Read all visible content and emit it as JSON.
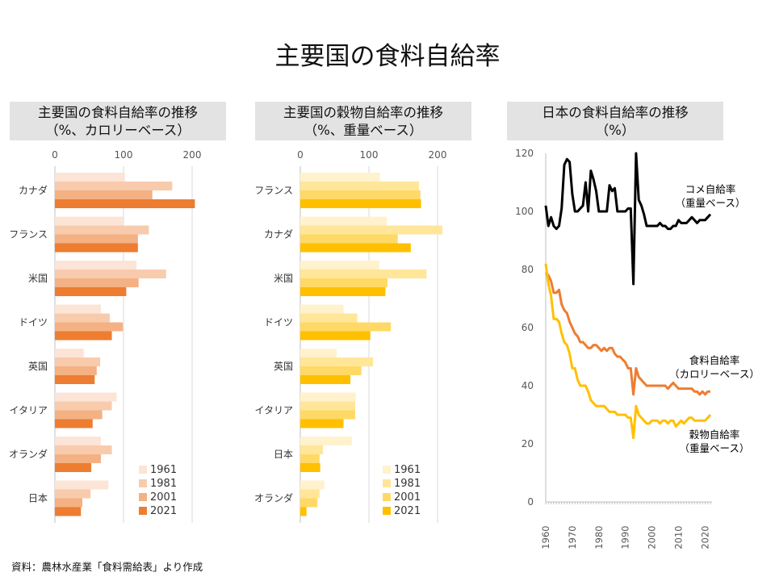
{
  "title": "主要国の食料自給率",
  "source": "資料：農林水産業「食料需給表」より作成",
  "colors": {
    "orange": [
      "#fce4d6",
      "#f8cbad",
      "#f4b183",
      "#ed7d31"
    ],
    "yellow": [
      "#fff2cc",
      "#ffe699",
      "#ffd966",
      "#ffc000"
    ],
    "rice": "#000000",
    "calorie": "#ed7d31",
    "grain": "#ffc000",
    "grid": "#d9d9d9"
  },
  "chart_data": [
    {
      "type": "bar",
      "orientation": "horizontal",
      "title_line1": "主要国の食料自給率の推移",
      "title_line2": "（%、カロリーベース）",
      "xlim": [
        0,
        200
      ],
      "xticks": [
        0,
        100,
        200
      ],
      "grid": true,
      "legend_position": "bottom-right",
      "categories": [
        "カナダ",
        "フランス",
        "米国",
        "ドイツ",
        "英国",
        "イタリア",
        "オランダ",
        "日本"
      ],
      "series": [
        {
          "name": "1961",
          "values": [
            102,
            99,
            119,
            67,
            42,
            90,
            67,
            78
          ]
        },
        {
          "name": "1981",
          "values": [
            171,
            137,
            162,
            80,
            66,
            83,
            83,
            52
          ]
        },
        {
          "name": "2001",
          "values": [
            142,
            121,
            122,
            99,
            61,
            69,
            67,
            40
          ]
        },
        {
          "name": "2021",
          "values": [
            204,
            121,
            104,
            83,
            58,
            55,
            53,
            38
          ]
        }
      ]
    },
    {
      "type": "bar",
      "orientation": "horizontal",
      "title_line1": "主要国の穀物自給率の推移",
      "title_line2": "（%、重量ベース）",
      "xlim": [
        0,
        200
      ],
      "xticks": [
        0,
        100,
        200
      ],
      "grid": true,
      "legend_position": "bottom-right",
      "categories": [
        "フランス",
        "カナダ",
        "米国",
        "ドイツ",
        "英国",
        "イタリア",
        "日本",
        "オランダ"
      ],
      "series": [
        {
          "name": "1961",
          "values": [
            116,
            126,
            115,
            63,
            53,
            81,
            75,
            35
          ]
        },
        {
          "name": "1981",
          "values": [
            173,
            207,
            184,
            83,
            106,
            80,
            33,
            28
          ]
        },
        {
          "name": "2001",
          "values": [
            175,
            142,
            127,
            132,
            89,
            80,
            28,
            25
          ]
        },
        {
          "name": "2021",
          "values": [
            176,
            161,
            124,
            102,
            73,
            63,
            29,
            9
          ]
        }
      ]
    },
    {
      "type": "line",
      "title_line1": "日本の食料自給率の推移",
      "title_line2": "（%）",
      "ylim": [
        0,
        120
      ],
      "yticks": [
        0,
        20,
        40,
        60,
        80,
        100,
        120
      ],
      "xlim": [
        1960,
        2022
      ],
      "xticks": [
        1960,
        1970,
        1980,
        1990,
        2000,
        2010,
        2020
      ],
      "grid": false,
      "x": [
        1960,
        1961,
        1962,
        1963,
        1964,
        1965,
        1966,
        1967,
        1968,
        1969,
        1970,
        1971,
        1972,
        1973,
        1974,
        1975,
        1976,
        1977,
        1978,
        1979,
        1980,
        1981,
        1982,
        1983,
        1984,
        1985,
        1986,
        1987,
        1988,
        1989,
        1990,
        1991,
        1992,
        1993,
        1994,
        1995,
        1996,
        1997,
        1998,
        1999,
        2000,
        2001,
        2002,
        2003,
        2004,
        2005,
        2006,
        2007,
        2008,
        2009,
        2010,
        2011,
        2012,
        2013,
        2014,
        2015,
        2016,
        2017,
        2018,
        2019,
        2020,
        2021,
        2022
      ],
      "series": [
        {
          "name": "コメ自給率",
          "name_sub": "（重量ベース）",
          "label_color": "#000000",
          "values": [
            102,
            95,
            98,
            95,
            94,
            95,
            101,
            116,
            118,
            117,
            106,
            100,
            100,
            101,
            102,
            110,
            100,
            114,
            111,
            107,
            100,
            100,
            100,
            100,
            109,
            107,
            108,
            100,
            100,
            100,
            100,
            101,
            101,
            75,
            120,
            104,
            102,
            99,
            95,
            95,
            95,
            95,
            95,
            96,
            95,
            95,
            94,
            94,
            95,
            95,
            97,
            96,
            96,
            96,
            97,
            98,
            97,
            96,
            97,
            97,
            97,
            98,
            99
          ]
        },
        {
          "name": "食料自給率",
          "name_sub": "（カロリーベース）",
          "label_color": "#000000",
          "values": [
            79,
            78,
            76,
            72,
            72,
            73,
            68,
            66,
            65,
            62,
            60,
            58,
            57,
            55,
            55,
            54,
            53,
            53,
            54,
            54,
            53,
            52,
            53,
            52,
            53,
            53,
            51,
            50,
            50,
            49,
            48,
            46,
            46,
            37,
            46,
            43,
            42,
            41,
            40,
            40,
            40,
            40,
            40,
            40,
            40,
            40,
            39,
            40,
            41,
            40,
            39,
            39,
            39,
            39,
            39,
            39,
            38,
            38,
            37,
            38,
            37,
            38,
            38
          ]
        },
        {
          "name": "穀物自給率",
          "name_sub": "（重量ベース）",
          "label_color": "#000000",
          "values": [
            82,
            75,
            71,
            63,
            63,
            62,
            58,
            55,
            54,
            51,
            46,
            46,
            42,
            40,
            40,
            40,
            38,
            35,
            34,
            33,
            33,
            33,
            33,
            32,
            31,
            31,
            31,
            30,
            30,
            30,
            30,
            29,
            29,
            22,
            33,
            30,
            29,
            28,
            27,
            27,
            28,
            28,
            28,
            27,
            28,
            28,
            27,
            28,
            28,
            26,
            27,
            28,
            27,
            28,
            29,
            29,
            28,
            28,
            28,
            28,
            28,
            29,
            30
          ]
        }
      ]
    }
  ]
}
